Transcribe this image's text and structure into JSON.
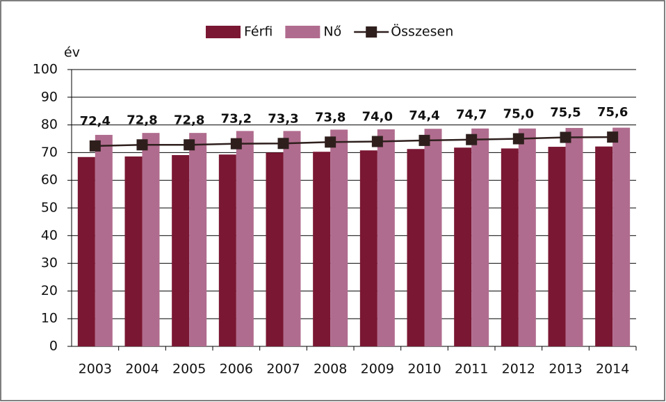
{
  "chart_data": {
    "type": "bar",
    "y_label": "év",
    "categories": [
      "2003",
      "2004",
      "2005",
      "2006",
      "2007",
      "2008",
      "2009",
      "2010",
      "2011",
      "2012",
      "2013",
      "2014"
    ],
    "series": [
      {
        "name": "Férfi",
        "color": "#7a1733",
        "values": [
          68.4,
          68.6,
          69.1,
          69.3,
          70.0,
          70.3,
          70.8,
          71.3,
          71.8,
          71.5,
          72.1,
          72.2
        ]
      },
      {
        "name": "Nő",
        "color": "#b06c8e",
        "values": [
          76.4,
          77.1,
          77.1,
          77.8,
          77.8,
          78.3,
          78.4,
          78.6,
          78.7,
          78.7,
          78.9,
          79.0
        ]
      },
      {
        "name": "Összesen",
        "type": "line",
        "color": "#2e1f1d",
        "values": [
          72.4,
          72.8,
          72.8,
          73.2,
          73.3,
          73.8,
          74.0,
          74.4,
          74.7,
          75.0,
          75.5,
          75.6
        ],
        "value_labels": [
          "72,4",
          "72,8",
          "72,8",
          "73,2",
          "73,3",
          "73,8",
          "74,0",
          "74,4",
          "74,7",
          "75,0",
          "75,5",
          "75,6"
        ]
      }
    ],
    "ylim": [
      0,
      100
    ],
    "yticks": [
      0,
      10,
      20,
      30,
      40,
      50,
      60,
      70,
      80,
      90,
      100
    ],
    "grid": true,
    "legend": "top"
  }
}
